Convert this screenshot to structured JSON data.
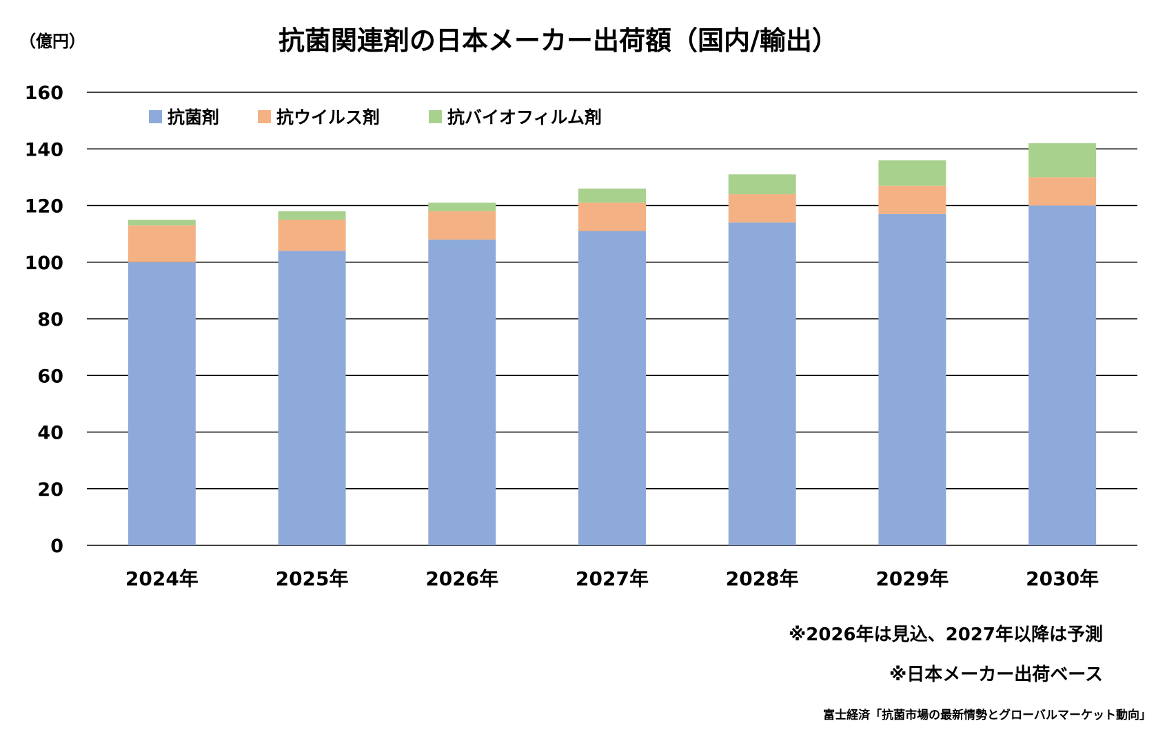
{
  "chart_data": {
    "type": "bar",
    "stacked": true,
    "title": "抗菌関連剤の日本メーカー出荷額（国内/輸出）",
    "unit_label": "（億円）",
    "xlabel": "",
    "ylabel": "",
    "categories": [
      "2024年",
      "2025年",
      "2026年",
      "2027年",
      "2028年",
      "2029年",
      "2030年"
    ],
    "series": [
      {
        "name": "抗菌剤",
        "color": "#8EAADB",
        "values": [
          100,
          104,
          108,
          111,
          114,
          117,
          120
        ]
      },
      {
        "name": "抗ウイルス剤",
        "color": "#F4B183",
        "values": [
          13,
          11,
          10,
          10,
          10,
          10,
          10
        ]
      },
      {
        "name": "抗バイオフィルム剤",
        "color": "#A9D18E",
        "values": [
          2,
          3,
          3,
          5,
          7,
          9,
          12
        ]
      }
    ],
    "ylim": [
      0,
      160
    ],
    "yticks": [
      0,
      20,
      40,
      60,
      80,
      100,
      120,
      140,
      160
    ],
    "grid": true,
    "legend_position": "top-left",
    "notes": [
      "※2026年は見込、2027年以降は予測",
      "※日本メーカー出荷ベース"
    ],
    "source": "富士経済「抗菌市場の最新情勢とグローバルマーケット動向」"
  }
}
